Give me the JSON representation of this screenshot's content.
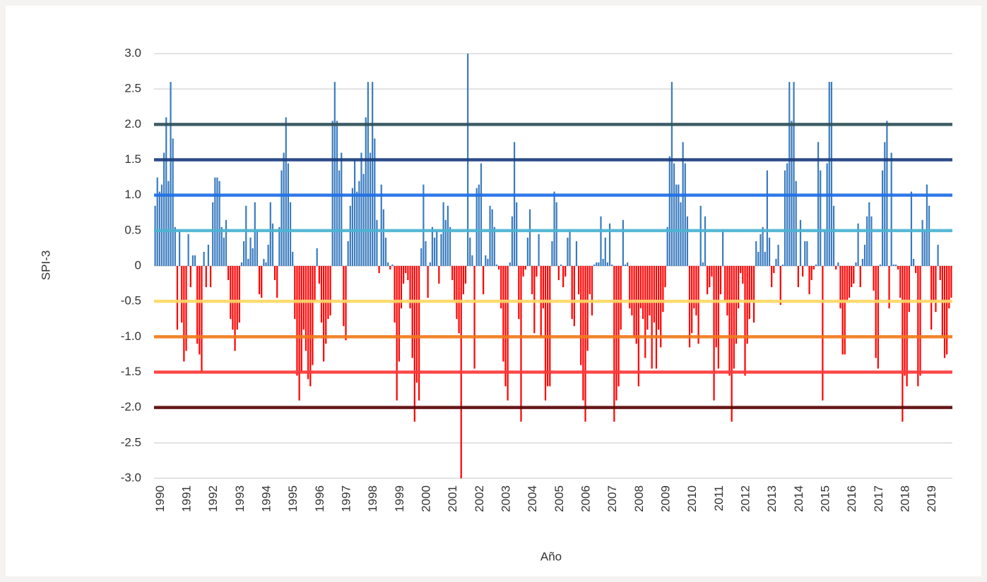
{
  "chart_data": {
    "type": "bar",
    "x_label": "Año",
    "y_label": "SPI-3",
    "categories": [
      "1990",
      null,
      null,
      null,
      null,
      null,
      null,
      null,
      null,
      null,
      null,
      null,
      "1991",
      null,
      null,
      null,
      null,
      null,
      null,
      null,
      null,
      null,
      null,
      null,
      "1992",
      null,
      null,
      null,
      null,
      null,
      null,
      null,
      null,
      null,
      null,
      null,
      "1993",
      null,
      null,
      null,
      null,
      null,
      null,
      null,
      null,
      null,
      null,
      null,
      "1994",
      null,
      null,
      null,
      null,
      null,
      null,
      null,
      null,
      null,
      null,
      null,
      "1995",
      null,
      null,
      null,
      null,
      null,
      null,
      null,
      null,
      null,
      null,
      null,
      "1996",
      null,
      null,
      null,
      null,
      null,
      null,
      null,
      null,
      null,
      null,
      null,
      "1997",
      null,
      null,
      null,
      null,
      null,
      null,
      null,
      null,
      null,
      null,
      null,
      "1998",
      null,
      null,
      null,
      null,
      null,
      null,
      null,
      null,
      null,
      null,
      null,
      "1999",
      null,
      null,
      null,
      null,
      null,
      null,
      null,
      null,
      null,
      null,
      null,
      "2000",
      null,
      null,
      null,
      null,
      null,
      null,
      null,
      null,
      null,
      null,
      null,
      "2001",
      null,
      null,
      null,
      null,
      null,
      null,
      null,
      null,
      null,
      null,
      null,
      "2002",
      null,
      null,
      null,
      null,
      null,
      null,
      null,
      null,
      null,
      null,
      null,
      "2003",
      null,
      null,
      null,
      null,
      null,
      null,
      null,
      null,
      null,
      null,
      null,
      "2004",
      null,
      null,
      null,
      null,
      null,
      null,
      null,
      null,
      null,
      null,
      null,
      "2005",
      null,
      null,
      null,
      null,
      null,
      null,
      null,
      null,
      null,
      null,
      null,
      "2006",
      null,
      null,
      null,
      null,
      null,
      null,
      null,
      null,
      null,
      null,
      null,
      "2007",
      null,
      null,
      null,
      null,
      null,
      null,
      null,
      null,
      null,
      null,
      null,
      "2008",
      null,
      null,
      null,
      null,
      null,
      null,
      null,
      null,
      null,
      null,
      null,
      "2009",
      null,
      null,
      null,
      null,
      null,
      null,
      null,
      null,
      null,
      null,
      null,
      "2010",
      null,
      null,
      null,
      null,
      null,
      null,
      null,
      null,
      null,
      null,
      null,
      "2011",
      null,
      null,
      null,
      null,
      null,
      null,
      null,
      null,
      null,
      null,
      null,
      "2012",
      null,
      null,
      null,
      null,
      null,
      null,
      null,
      null,
      null,
      null,
      null,
      "2013",
      null,
      null,
      null,
      null,
      null,
      null,
      null,
      null,
      null,
      null,
      null,
      "2014",
      null,
      null,
      null,
      null,
      null,
      null,
      null,
      null,
      null,
      null,
      null,
      "2015",
      null,
      null,
      null,
      null,
      null,
      null,
      null,
      null,
      null,
      null,
      null,
      "2016",
      null,
      null,
      null,
      null,
      null,
      null,
      null,
      null,
      null,
      null,
      null,
      "2017",
      null,
      null,
      null,
      null,
      null,
      null,
      null,
      null,
      null,
      null,
      null,
      "2018",
      null,
      null,
      null,
      null,
      null,
      null,
      null,
      null,
      null,
      null,
      null,
      "2019",
      null,
      null,
      null,
      null,
      null,
      null,
      null,
      null,
      null,
      null,
      null
    ],
    "values": [
      0.85,
      1.25,
      1.05,
      1.15,
      1.6,
      2.1,
      1.2,
      2.6,
      1.8,
      0.55,
      -0.9,
      0.5,
      -0.8,
      -1.35,
      -1.2,
      0.45,
      -0.3,
      0.15,
      0.15,
      -1.1,
      -1.25,
      -1.5,
      0.2,
      -0.3,
      0.3,
      -0.3,
      0.9,
      1.25,
      1.25,
      1.2,
      0.55,
      0.4,
      0.65,
      -0.2,
      -0.75,
      -0.9,
      -1.2,
      -0.9,
      -0.8,
      0.05,
      0.35,
      0.85,
      0.1,
      0.4,
      0.25,
      0.9,
      0.5,
      -0.4,
      -0.45,
      0.1,
      0.05,
      0.3,
      0.9,
      0.6,
      -0.2,
      -0.45,
      0.55,
      1.35,
      1.6,
      2.1,
      1.45,
      0.9,
      0.2,
      -0.75,
      -1.55,
      -1.9,
      -1.5,
      -0.9,
      -1.2,
      -1.6,
      -1.7,
      -1.4,
      -0.5,
      0.25,
      -0.25,
      -0.8,
      -1.35,
      -1.1,
      -0.75,
      -0.7,
      2.05,
      2.6,
      2.05,
      1.35,
      1.6,
      -0.85,
      -1.05,
      0.35,
      0.85,
      1.1,
      1.5,
      1.05,
      1.2,
      1.6,
      1.3,
      2.1,
      2.6,
      1.6,
      2.6,
      1.8,
      0.65,
      -0.1,
      1.15,
      0.8,
      0.4,
      0.05,
      -0.05,
      0.02,
      -0.8,
      -1.9,
      -1.35,
      -0.6,
      -0.25,
      -0.1,
      -0.2,
      -0.6,
      -1.3,
      -2.2,
      -1.65,
      -1.9,
      0.25,
      1.15,
      0.35,
      -0.45,
      0.05,
      0.55,
      0.4,
      0.5,
      -0.25,
      0.45,
      0.9,
      0.65,
      0.85,
      0.55,
      -0.2,
      -0.5,
      -0.75,
      -0.95,
      -3.0,
      -0.4,
      -0.25,
      3.0,
      0.4,
      0.15,
      -1.45,
      1.1,
      1.15,
      1.45,
      -0.4,
      0.15,
      0.1,
      0.85,
      0.8,
      0.55,
      0.02,
      -0.05,
      -0.6,
      -1.35,
      -1.7,
      -1.9,
      0.05,
      0.7,
      1.75,
      0.9,
      -0.75,
      -2.2,
      -0.15,
      -0.05,
      0.4,
      0.8,
      -0.4,
      -0.95,
      -0.15,
      0.45,
      -1.0,
      -0.6,
      -1.9,
      -1.7,
      -1.7,
      0.35,
      1.05,
      0.9,
      -0.2,
      0.02,
      -0.3,
      -0.15,
      0.4,
      0.5,
      -0.75,
      -0.85,
      0.35,
      -0.4,
      -1.4,
      -1.9,
      -2.2,
      -1.2,
      -0.4,
      -0.7,
      0.02,
      0.05,
      0.05,
      0.7,
      0.1,
      0.4,
      0.05,
      0.6,
      0.02,
      -2.2,
      -1.9,
      -1.7,
      -0.9,
      0.65,
      0.02,
      0.05,
      -0.6,
      -0.7,
      -1.0,
      -1.1,
      -1.7,
      -0.6,
      -0.75,
      -1.3,
      -0.9,
      -0.7,
      -1.45,
      -0.8,
      -1.45,
      -0.9,
      -1.15,
      -0.65,
      -0.3,
      0.55,
      1.55,
      2.6,
      1.45,
      1.15,
      1.15,
      0.9,
      1.75,
      1.45,
      0.7,
      -1.15,
      -0.95,
      -0.6,
      -0.7,
      -1.1,
      0.85,
      0.05,
      0.7,
      -0.4,
      -0.3,
      -0.15,
      -1.9,
      -1.15,
      -1.45,
      -0.4,
      0.5,
      -0.5,
      -0.7,
      -1.55,
      -2.2,
      -1.45,
      -1.1,
      -0.6,
      -0.1,
      -0.25,
      -1.55,
      -1.1,
      -0.75,
      -0.5,
      -0.8,
      0.35,
      0.2,
      0.45,
      0.55,
      0.2,
      1.35,
      0.4,
      -0.3,
      -0.1,
      0.1,
      0.3,
      -0.55,
      0.02,
      1.35,
      1.45,
      2.6,
      2.05,
      2.6,
      1.2,
      -0.3,
      0.65,
      -0.15,
      0.35,
      0.35,
      -0.4,
      -0.2,
      -0.05,
      0.02,
      1.75,
      1.35,
      -1.9,
      0.5,
      1.45,
      2.6,
      2.6,
      0.85,
      -0.05,
      0.05,
      -0.6,
      -1.25,
      -1.25,
      -0.5,
      -0.45,
      -0.3,
      -0.25,
      0.05,
      0.6,
      -0.3,
      0.1,
      0.3,
      0.7,
      0.9,
      0.7,
      -0.35,
      -1.3,
      -1.45,
      0.02,
      1.35,
      1.75,
      2.05,
      -0.6,
      1.6,
      0.02,
      0.02,
      -0.05,
      -0.45,
      -2.2,
      -1.55,
      -1.7,
      -0.65,
      1.05,
      0.1,
      -0.1,
      -1.7,
      -1.55,
      0.65,
      0.5,
      1.15,
      0.85,
      -0.9,
      -0.5,
      -0.65,
      0.3,
      -0.2,
      -1.0,
      -1.3,
      -1.25,
      -0.6,
      -0.45
    ],
    "positive_color": "#3a7bbf",
    "negative_color": "#ff0000",
    "ylim": [
      -3,
      3
    ],
    "yticks": [
      {
        "value": -3,
        "label": "-3.0"
      },
      -2.5,
      {
        "value": -2,
        "label": "-2.0"
      },
      -1.5,
      {
        "value": -1,
        "label": "-1.0"
      },
      -0.5,
      0,
      0.5,
      {
        "value": 1,
        "label": "1.0"
      },
      1.5,
      {
        "value": 2,
        "label": "2.0"
      },
      2.5,
      {
        "value": 3,
        "label": "3.0"
      }
    ],
    "grid": true,
    "reference_lines": [
      {
        "value": 2,
        "color": "#2f5059"
      },
      {
        "value": 1.5,
        "color": "#1b3d7e"
      },
      {
        "value": 1,
        "color": "#1f6fe6"
      },
      {
        "value": 0.5,
        "color": "#4cb4d2"
      },
      {
        "value": -0.5,
        "color": "#ffd966"
      },
      {
        "value": -1,
        "color": "#f27a18"
      },
      {
        "value": -1.5,
        "color": "#ff3a3a"
      },
      {
        "value": -2,
        "color": "#5a0505"
      }
    ]
  }
}
